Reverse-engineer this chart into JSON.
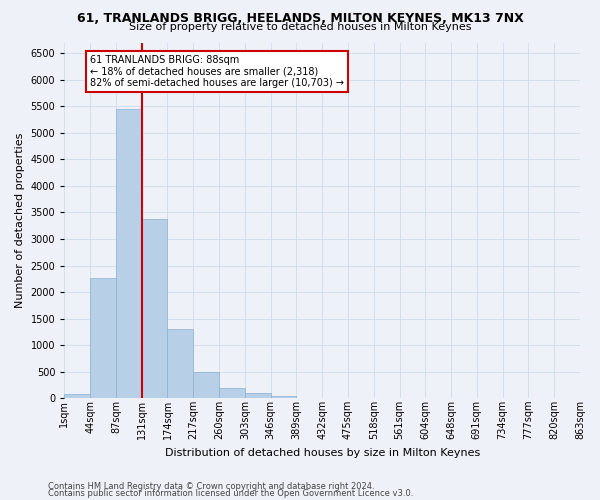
{
  "title_line1": "61, TRANLANDS BRIGG, HEELANDS, MILTON KEYNES, MK13 7NX",
  "title_line2": "Size of property relative to detached houses in Milton Keynes",
  "xlabel": "Distribution of detached houses by size in Milton Keynes",
  "ylabel": "Number of detached properties",
  "footer_line1": "Contains HM Land Registry data © Crown copyright and database right 2024.",
  "footer_line2": "Contains public sector information licensed under the Open Government Licence v3.0.",
  "bins": [
    "1sqm",
    "44sqm",
    "87sqm",
    "131sqm",
    "174sqm",
    "217sqm",
    "260sqm",
    "303sqm",
    "346sqm",
    "389sqm",
    "432sqm",
    "475sqm",
    "518sqm",
    "561sqm",
    "604sqm",
    "648sqm",
    "691sqm",
    "734sqm",
    "777sqm",
    "820sqm",
    "863sqm"
  ],
  "values": [
    75,
    2270,
    5450,
    3380,
    1310,
    490,
    185,
    90,
    45,
    0,
    0,
    0,
    0,
    0,
    0,
    0,
    0,
    0,
    0,
    0
  ],
  "bar_color": "#b8cfe8",
  "bar_edgecolor": "#8ab0d0",
  "vline_bin_index": 2,
  "vline_color": "#cc0000",
  "annotation_text": "61 TRANLANDS BRIGG: 88sqm\n← 18% of detached houses are smaller (2,318)\n82% of semi-detached houses are larger (10,703) →",
  "annotation_box_edgecolor": "#cc0000",
  "annotation_box_facecolor": "#ffffff",
  "grid_color": "#d0dcea",
  "background_color": "#eef2f8",
  "ylim": [
    0,
    6700
  ],
  "yticks": [
    0,
    500,
    1000,
    1500,
    2000,
    2500,
    3000,
    3500,
    4000,
    4500,
    5000,
    5500,
    6000,
    6500
  ],
  "title_fontsize": 9,
  "subtitle_fontsize": 8,
  "ylabel_fontsize": 8,
  "xlabel_fontsize": 8,
  "tick_fontsize": 7,
  "annotation_fontsize": 7,
  "footer_fontsize": 6
}
